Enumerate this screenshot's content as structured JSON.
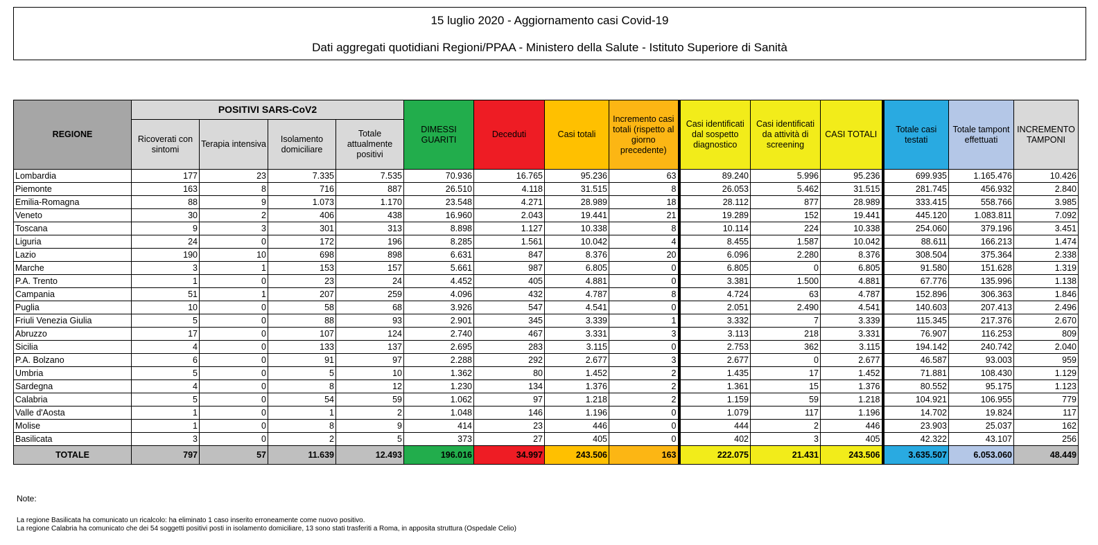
{
  "title": "15 luglio 2020 - Aggiornamento casi Covid-19",
  "subtitle": "Dati aggregati quotidiani Regioni/PPAA - Ministero della Salute - Istituto Superiore di Sanità",
  "table": {
    "group_header": "POSITIVI SARS-CoV2",
    "headers": [
      "REGIONE",
      "Ricoverati con sintomi",
      "Terapia intensiva",
      "Isolamento domiciliare",
      "Totale attualmente positivi",
      "DIMESSI GUARITI",
      "Deceduti",
      "Casi totali",
      "Incremento casi totali (rispetto al giorno precedente)",
      "Casi identificati dal sospetto diagnostico",
      "Casi identificati da attività di screening",
      "CASI TOTALI",
      "Totale casi testati",
      "Totale tampont effettuati",
      "INCREMENTO TAMPONI"
    ],
    "colors": {
      "regione": "#a6a6a6",
      "positivi": "#d9d9d9",
      "dimessi": "#22ad4c",
      "deceduti": "#ee1c24",
      "casi_totali": "#ffc000",
      "incremento": "#fcb614",
      "identificati": "#f2ec1a",
      "testati": "#29aae1",
      "tamponi": "#b4c7e7",
      "incremento_tamponi": "#d9d9d9"
    },
    "rows": [
      [
        "Lombardia",
        "177",
        "23",
        "7.335",
        "7.535",
        "70.936",
        "16.765",
        "95.236",
        "63",
        "89.240",
        "5.996",
        "95.236",
        "699.935",
        "1.165.476",
        "10.426"
      ],
      [
        "Piemonte",
        "163",
        "8",
        "716",
        "887",
        "26.510",
        "4.118",
        "31.515",
        "8",
        "26.053",
        "5.462",
        "31.515",
        "281.745",
        "456.932",
        "2.840"
      ],
      [
        "Emilia-Romagna",
        "88",
        "9",
        "1.073",
        "1.170",
        "23.548",
        "4.271",
        "28.989",
        "18",
        "28.112",
        "877",
        "28.989",
        "333.415",
        "558.766",
        "3.985"
      ],
      [
        "Veneto",
        "30",
        "2",
        "406",
        "438",
        "16.960",
        "2.043",
        "19.441",
        "21",
        "19.289",
        "152",
        "19.441",
        "445.120",
        "1.083.811",
        "7.092"
      ],
      [
        "Toscana",
        "9",
        "3",
        "301",
        "313",
        "8.898",
        "1.127",
        "10.338",
        "8",
        "10.114",
        "224",
        "10.338",
        "254.060",
        "379.196",
        "3.451"
      ],
      [
        "Liguria",
        "24",
        "0",
        "172",
        "196",
        "8.285",
        "1.561",
        "10.042",
        "4",
        "8.455",
        "1.587",
        "10.042",
        "88.611",
        "166.213",
        "1.474"
      ],
      [
        "Lazio",
        "190",
        "10",
        "698",
        "898",
        "6.631",
        "847",
        "8.376",
        "20",
        "6.096",
        "2.280",
        "8.376",
        "308.504",
        "375.364",
        "2.338"
      ],
      [
        "Marche",
        "3",
        "1",
        "153",
        "157",
        "5.661",
        "987",
        "6.805",
        "0",
        "6.805",
        "0",
        "6.805",
        "91.580",
        "151.628",
        "1.319"
      ],
      [
        "P.A. Trento",
        "1",
        "0",
        "23",
        "24",
        "4.452",
        "405",
        "4.881",
        "0",
        "3.381",
        "1.500",
        "4.881",
        "67.776",
        "135.996",
        "1.138"
      ],
      [
        "Campania",
        "51",
        "1",
        "207",
        "259",
        "4.096",
        "432",
        "4.787",
        "8",
        "4.724",
        "63",
        "4.787",
        "152.896",
        "306.363",
        "1.846"
      ],
      [
        "Puglia",
        "10",
        "0",
        "58",
        "68",
        "3.926",
        "547",
        "4.541",
        "0",
        "2.051",
        "2.490",
        "4.541",
        "140.603",
        "207.413",
        "2.496"
      ],
      [
        "Friuli Venezia Giulia",
        "5",
        "0",
        "88",
        "93",
        "2.901",
        "345",
        "3.339",
        "1",
        "3.332",
        "7",
        "3.339",
        "115.345",
        "217.376",
        "2.670"
      ],
      [
        "Abruzzo",
        "17",
        "0",
        "107",
        "124",
        "2.740",
        "467",
        "3.331",
        "3",
        "3.113",
        "218",
        "3.331",
        "76.907",
        "116.253",
        "809"
      ],
      [
        "Sicilia",
        "4",
        "0",
        "133",
        "137",
        "2.695",
        "283",
        "3.115",
        "0",
        "2.753",
        "362",
        "3.115",
        "194.142",
        "240.742",
        "2.040"
      ],
      [
        "P.A. Bolzano",
        "6",
        "0",
        "91",
        "97",
        "2.288",
        "292",
        "2.677",
        "3",
        "2.677",
        "0",
        "2.677",
        "46.587",
        "93.003",
        "959"
      ],
      [
        "Umbria",
        "5",
        "0",
        "5",
        "10",
        "1.362",
        "80",
        "1.452",
        "2",
        "1.435",
        "17",
        "1.452",
        "71.881",
        "108.430",
        "1.129"
      ],
      [
        "Sardegna",
        "4",
        "0",
        "8",
        "12",
        "1.230",
        "134",
        "1.376",
        "2",
        "1.361",
        "15",
        "1.376",
        "80.552",
        "95.175",
        "1.123"
      ],
      [
        "Calabria",
        "5",
        "0",
        "54",
        "59",
        "1.062",
        "97",
        "1.218",
        "2",
        "1.159",
        "59",
        "1.218",
        "104.921",
        "106.955",
        "779"
      ],
      [
        "Valle d'Aosta",
        "1",
        "0",
        "1",
        "2",
        "1.048",
        "146",
        "1.196",
        "0",
        "1.079",
        "117",
        "1.196",
        "14.702",
        "19.824",
        "117"
      ],
      [
        "Molise",
        "1",
        "0",
        "8",
        "9",
        "414",
        "23",
        "446",
        "0",
        "444",
        "2",
        "446",
        "23.903",
        "25.037",
        "162"
      ],
      [
        "Basilicata",
        "3",
        "0",
        "2",
        "5",
        "373",
        "27",
        "405",
        "0",
        "402",
        "3",
        "405",
        "42.322",
        "43.107",
        "256"
      ]
    ],
    "totals": [
      "TOTALE",
      "797",
      "57",
      "11.639",
      "12.493",
      "196.016",
      "34.997",
      "243.506",
      "163",
      "222.075",
      "21.431",
      "243.506",
      "3.635.507",
      "6.053.060",
      "48.449"
    ]
  },
  "notes": {
    "title": "Note:",
    "lines": [
      "La regione Basilicata ha comunicato un ricalcolo: ha eliminato 1 caso inserito erroneamente come nuovo positivo.",
      "La regione Calabria ha comunicato che dei 54 soggetti positivi posti in isolamento domiciliare, 13 sono stati trasferiti a Roma, in apposita struttura (Ospedale Celio)"
    ]
  }
}
